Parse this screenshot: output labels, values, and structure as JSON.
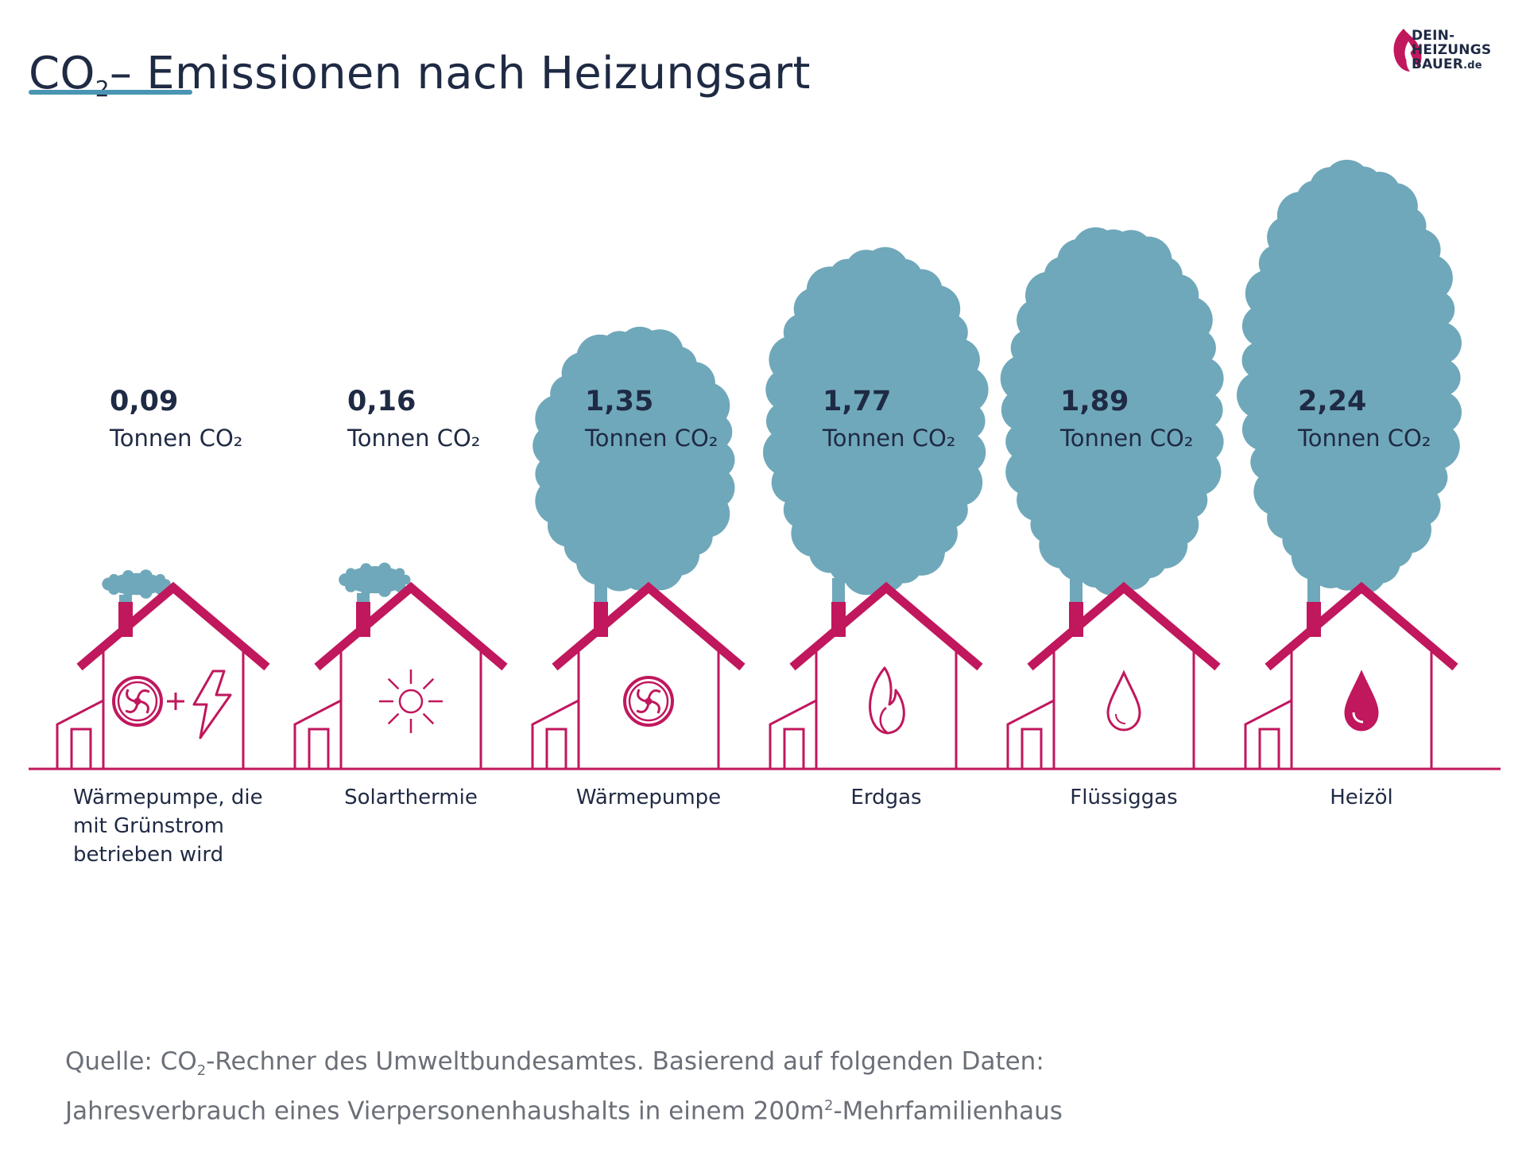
{
  "title": {
    "prefix": "CO",
    "sub": "2",
    "rest": "– Emissionen nach Heizungsart"
  },
  "logo": {
    "line1": "DEIN-",
    "line2": "HEIZUNGS",
    "line3": "BAUER",
    "suffix": ".de"
  },
  "colors": {
    "smoke": "#6fa8ba",
    "house": "#c0175d",
    "text": "#1f2a44",
    "accent": "#4a95b3",
    "source": "#6b6f78"
  },
  "chart_data": {
    "type": "bar",
    "unit_label": "Tonnen CO₂",
    "categories": [
      "Wärmepumpe, die mit Grünstrom betrieben wird",
      "Solarthermie",
      "Wärmepumpe",
      "Erdgas",
      "Flüssiggas",
      "Heizöl"
    ],
    "category_lines": [
      [
        "Wärmepumpe, die",
        "mit Grünstrom",
        "betrieben wird"
      ],
      [
        "Solarthermie"
      ],
      [
        "Wärmepumpe"
      ],
      [
        "Erdgas"
      ],
      [
        "Flüssiggas"
      ],
      [
        "Heizöl"
      ]
    ],
    "values": [
      0.09,
      0.16,
      1.35,
      1.77,
      1.89,
      2.24
    ],
    "value_labels": [
      "0,09",
      "0,16",
      "1,35",
      "1,77",
      "1,89",
      "2,24"
    ],
    "icons": [
      "fan-plus-lightning-icon",
      "sun-icon",
      "fan-icon",
      "flame-icon",
      "drop-outline-icon",
      "drop-filled-icon"
    ]
  },
  "source": {
    "line1_a": "Quelle: CO",
    "line1_sub": "2",
    "line1_b": "-Rechner des Umweltbundesamtes. Basierend auf folgenden Daten:",
    "line2_a": "Jahresverbrauch eines Vierpersonenhaushalts in einem 200m",
    "line2_sup": "2",
    "line2_b": "-Mehrfamilienhaus"
  }
}
